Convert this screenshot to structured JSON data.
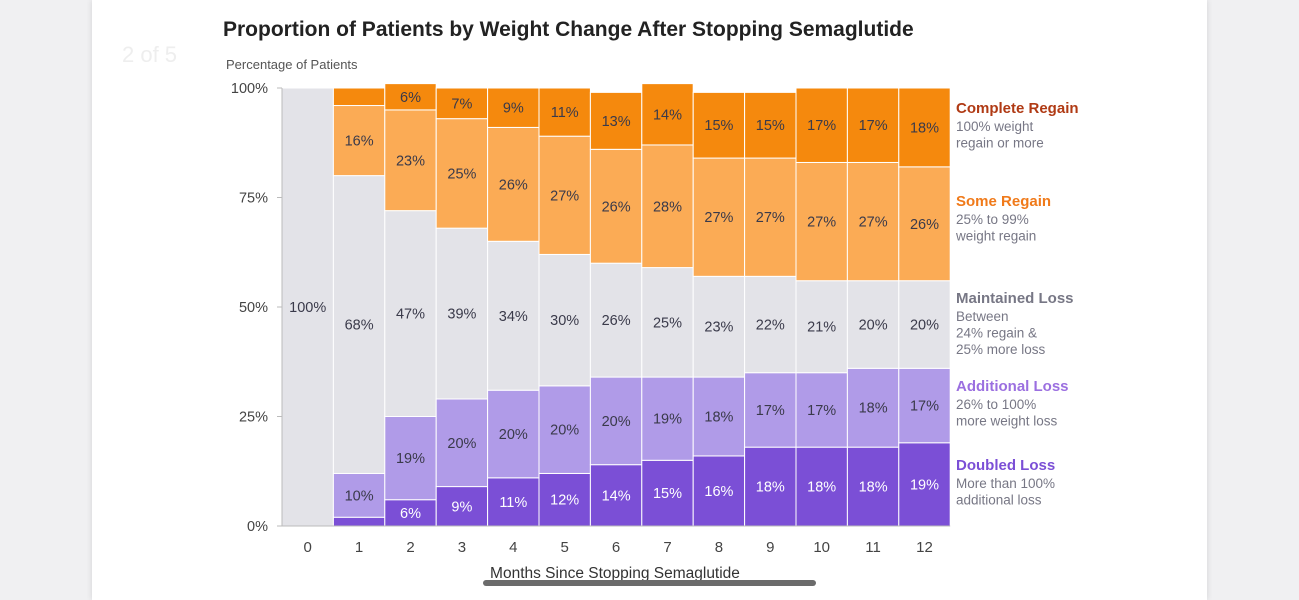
{
  "page_indicator": "2 of 5",
  "chart_data": {
    "type": "bar",
    "stacked": true,
    "title": "Proportion of Patients by Weight Change After Stopping Semaglutide",
    "ylabel": "Percentage of Patients",
    "xlabel": "Months Since Stopping Semaglutide",
    "ylim": [
      0,
      100
    ],
    "yticks": [
      0,
      25,
      50,
      75,
      100
    ],
    "ytick_labels": [
      "0%",
      "25%",
      "50%",
      "75%",
      "100%"
    ],
    "categories": [
      "0",
      "1",
      "2",
      "3",
      "4",
      "5",
      "6",
      "7",
      "8",
      "9",
      "10",
      "11",
      "12"
    ],
    "legend_position": "right",
    "series": [
      {
        "name": "Doubled Loss",
        "description": "More than 100% additional loss",
        "color": "#7b4fd6",
        "text_color": "#ffffff",
        "legend_color": "#7b4fd6",
        "values": [
          0,
          2,
          6,
          9,
          11,
          12,
          14,
          15,
          16,
          18,
          18,
          18,
          19
        ],
        "labels": [
          "",
          "",
          "6%",
          "9%",
          "11%",
          "12%",
          "14%",
          "15%",
          "16%",
          "18%",
          "18%",
          "18%",
          "19%"
        ]
      },
      {
        "name": "Additional Loss",
        "description": "26% to 100% more weight loss",
        "color": "#b09be8",
        "text_color": "#3a3a4a",
        "legend_color": "#9b6fe0",
        "values": [
          0,
          10,
          19,
          20,
          20,
          20,
          20,
          19,
          18,
          17,
          17,
          18,
          17
        ],
        "labels": [
          "",
          "10%",
          "19%",
          "20%",
          "20%",
          "20%",
          "20%",
          "19%",
          "18%",
          "17%",
          "17%",
          "18%",
          "17%"
        ]
      },
      {
        "name": "Maintained Loss",
        "description": "Between 24% regain & 25% more loss",
        "color": "#e3e3e8",
        "text_color": "#3a3a4a",
        "legend_color": "#777785",
        "values": [
          100,
          68,
          47,
          39,
          34,
          30,
          26,
          25,
          23,
          22,
          21,
          20,
          20
        ],
        "labels": [
          "100%",
          "68%",
          "47%",
          "39%",
          "34%",
          "30%",
          "26%",
          "25%",
          "23%",
          "22%",
          "21%",
          "20%",
          "20%"
        ]
      },
      {
        "name": "Some Regain",
        "description": "25% to 99% weight regain",
        "color": "#fbab55",
        "text_color": "#3a3a4a",
        "legend_color": "#f07a1a",
        "values": [
          0,
          16,
          23,
          25,
          26,
          27,
          26,
          28,
          27,
          27,
          27,
          27,
          26
        ],
        "labels": [
          "",
          "16%",
          "23%",
          "25%",
          "26%",
          "27%",
          "26%",
          "28%",
          "27%",
          "27%",
          "27%",
          "27%",
          "26%"
        ]
      },
      {
        "name": "Complete Regain",
        "description": "100% weight regain or more",
        "color": "#f5890d",
        "text_color": "#3a3a4a",
        "legend_color": "#b03a14",
        "values": [
          0,
          4,
          6,
          7,
          9,
          11,
          13,
          14,
          15,
          15,
          17,
          17,
          18
        ],
        "labels": [
          "",
          "",
          "6%",
          "7%",
          "9%",
          "11%",
          "13%",
          "14%",
          "15%",
          "15%",
          "17%",
          "17%",
          "18%"
        ]
      }
    ]
  }
}
